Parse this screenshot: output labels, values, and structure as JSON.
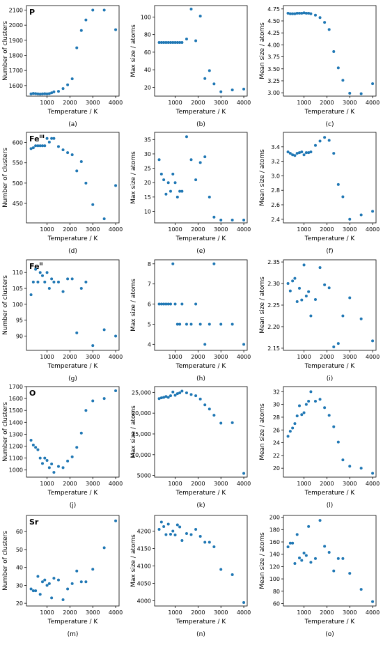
{
  "figure": {
    "subplot_letters": [
      "(a)",
      "(b)",
      "(c)",
      "(d)",
      "(e)",
      "(f)",
      "(g)",
      "(h)",
      "(i)",
      "(j)",
      "(k)",
      "(l)",
      "(m)",
      "(n)",
      "(o)"
    ],
    "row_labels": [
      "P",
      "Fe",
      "Fe",
      "O",
      "Sr"
    ],
    "row_label_superscripts": [
      "",
      "III",
      "II",
      "",
      ""
    ],
    "marker_color": "#1f77b4"
  },
  "chart_data": [
    {
      "type": "scatter",
      "letter": "(a)",
      "row_label": "P",
      "xlabel": "Temperature / K",
      "ylabel": "Number of clusters",
      "xlim": [
        100,
        4150
      ],
      "ylim": [
        1530,
        2130
      ],
      "xticks": [
        1000,
        2000,
        3000,
        4000
      ],
      "xtick_labels": [
        "1000",
        "2000",
        "3000",
        "4000"
      ],
      "yticks": [
        1600,
        1700,
        1800,
        1900,
        2000,
        2100
      ],
      "ytick_labels": [
        "1600",
        "1700",
        "1800",
        "1900",
        "2000",
        "2100"
      ],
      "x": [
        300,
        400,
        500,
        600,
        700,
        800,
        900,
        1000,
        1100,
        1200,
        1300,
        1500,
        1700,
        1900,
        2100,
        2300,
        2500,
        2700,
        3000,
        3500,
        4000
      ],
      "y": [
        1545,
        1548,
        1547,
        1545,
        1544,
        1545,
        1546,
        1545,
        1547,
        1552,
        1558,
        1562,
        1580,
        1605,
        1645,
        1850,
        1965,
        2035,
        2100,
        2100,
        1970
      ]
    },
    {
      "type": "scatter",
      "letter": "(b)",
      "xlabel": "Temperature / K",
      "ylabel": "Max size / atoms",
      "xlim": [
        100,
        4150
      ],
      "ylim": [
        10,
        113
      ],
      "xticks": [
        1000,
        2000,
        3000,
        4000
      ],
      "xtick_labels": [
        "1000",
        "2000",
        "3000",
        "4000"
      ],
      "yticks": [
        20,
        40,
        60,
        80,
        100
      ],
      "ytick_labels": [
        "20",
        "40",
        "60",
        "80",
        "100"
      ],
      "x": [
        300,
        400,
        500,
        600,
        700,
        800,
        900,
        1000,
        1100,
        1200,
        1300,
        1500,
        1700,
        1900,
        2100,
        2300,
        2500,
        2700,
        3000,
        3500,
        4000
      ],
      "y": [
        71,
        71,
        71,
        71,
        71,
        71,
        71,
        71,
        71,
        71,
        71,
        75,
        109,
        73,
        101,
        30,
        39,
        24,
        15,
        17,
        18
      ]
    },
    {
      "type": "scatter",
      "letter": "(c)",
      "xlabel": "Temperature / K",
      "ylabel": "Mean size / atoms",
      "xlim": [
        100,
        4150
      ],
      "ylim": [
        2.93,
        4.82
      ],
      "xticks": [
        1000,
        2000,
        3000,
        4000
      ],
      "xtick_labels": [
        "1000",
        "2000",
        "3000",
        "4000"
      ],
      "yticks": [
        3.0,
        3.25,
        3.5,
        3.75,
        4.0,
        4.25,
        4.5,
        4.75
      ],
      "ytick_labels": [
        "3.00",
        "3.25",
        "3.50",
        "3.75",
        "4.00",
        "4.25",
        "4.50",
        "4.75"
      ],
      "x": [
        300,
        400,
        500,
        600,
        700,
        800,
        900,
        1000,
        1100,
        1200,
        1300,
        1500,
        1700,
        1900,
        2100,
        2300,
        2500,
        2700,
        3000,
        3500,
        4000
      ],
      "y": [
        4.66,
        4.65,
        4.65,
        4.65,
        4.66,
        4.66,
        4.66,
        4.67,
        4.66,
        4.66,
        4.65,
        4.62,
        4.57,
        4.47,
        4.32,
        3.86,
        3.52,
        3.26,
        2.99,
        2.98,
        3.19
      ]
    },
    {
      "type": "scatter",
      "letter": "(d)",
      "row_label": "Fe",
      "row_label_sup": "III",
      "xlabel": "Temperature / K",
      "ylabel": "Number of clusters",
      "xlim": [
        100,
        4150
      ],
      "ylim": [
        402,
        625
      ],
      "xticks": [
        1000,
        2000,
        3000,
        4000
      ],
      "xtick_labels": [
        "1000",
        "2000",
        "3000",
        "4000"
      ],
      "yticks": [
        450,
        500,
        550,
        600
      ],
      "ytick_labels": [
        "450",
        "500",
        "550",
        "600"
      ],
      "x": [
        300,
        400,
        500,
        600,
        700,
        800,
        900,
        1000,
        1100,
        1200,
        1300,
        1500,
        1700,
        1900,
        2100,
        2300,
        2500,
        2700,
        3000,
        3500,
        4000
      ],
      "y": [
        585,
        587,
        592,
        592,
        592,
        592,
        592,
        610,
        601,
        610,
        610,
        590,
        582,
        575,
        570,
        530,
        553,
        500,
        447,
        412,
        494
      ]
    },
    {
      "type": "scatter",
      "letter": "(e)",
      "xlabel": "Temperature / K",
      "ylabel": "Max size / atoms",
      "xlim": [
        100,
        4150
      ],
      "ylim": [
        6,
        37.5
      ],
      "xticks": [
        1000,
        2000,
        3000,
        4000
      ],
      "xtick_labels": [
        "1000",
        "2000",
        "3000",
        "4000"
      ],
      "yticks": [
        10,
        15,
        20,
        25,
        30,
        35
      ],
      "ytick_labels": [
        "10",
        "15",
        "20",
        "25",
        "30",
        "35"
      ],
      "x": [
        300,
        400,
        500,
        600,
        700,
        800,
        900,
        1000,
        1100,
        1200,
        1300,
        1500,
        1700,
        1900,
        2100,
        2300,
        2500,
        2700,
        3000,
        3500,
        4000
      ],
      "y": [
        28,
        23,
        21,
        16,
        20,
        17,
        23,
        20,
        15,
        17,
        17,
        36,
        28,
        21,
        27,
        29,
        15,
        8,
        7,
        7,
        7
      ]
    },
    {
      "type": "scatter",
      "letter": "(f)",
      "xlabel": "Temperature / K",
      "ylabel": "Mean size / atoms",
      "xlim": [
        100,
        4150
      ],
      "ylim": [
        2.35,
        3.6
      ],
      "xticks": [
        1000,
        2000,
        3000,
        4000
      ],
      "xtick_labels": [
        "1000",
        "2000",
        "3000",
        "4000"
      ],
      "yticks": [
        2.4,
        2.6,
        2.8,
        3.0,
        3.2,
        3.4
      ],
      "ytick_labels": [
        "2.4",
        "2.6",
        "2.8",
        "3.0",
        "3.2",
        "3.4"
      ],
      "x": [
        300,
        400,
        500,
        600,
        700,
        800,
        900,
        1000,
        1100,
        1200,
        1300,
        1500,
        1700,
        1900,
        2100,
        2300,
        2500,
        2700,
        3000,
        3500,
        4000
      ],
      "y": [
        3.33,
        3.31,
        3.29,
        3.28,
        3.31,
        3.32,
        3.33,
        3.29,
        3.32,
        3.32,
        3.33,
        3.42,
        3.48,
        3.53,
        3.49,
        3.31,
        2.88,
        2.71,
        2.4,
        2.46,
        2.51
      ]
    },
    {
      "type": "scatter",
      "letter": "(g)",
      "row_label": "Fe",
      "row_label_sup": "II",
      "xlabel": "Temperature / K",
      "ylabel": "Number of clusters",
      "xlim": [
        100,
        4150
      ],
      "ylim": [
        85.5,
        114
      ],
      "xticks": [
        1000,
        2000,
        3000,
        4000
      ],
      "xtick_labels": [
        "1000",
        "2000",
        "3000",
        "4000"
      ],
      "yticks": [
        90,
        95,
        100,
        105,
        110
      ],
      "ytick_labels": [
        "90",
        "95",
        "100",
        "105",
        "110"
      ],
      "x": [
        300,
        400,
        500,
        600,
        700,
        800,
        900,
        1000,
        1100,
        1200,
        1300,
        1500,
        1700,
        1900,
        2100,
        2300,
        2500,
        2700,
        3000,
        3500,
        4000
      ],
      "y": [
        103,
        107,
        111,
        107,
        110,
        109,
        107,
        110,
        105,
        108,
        107,
        107,
        104,
        108,
        108,
        91,
        105,
        107,
        87,
        92,
        90
      ]
    },
    {
      "type": "scatter",
      "letter": "(h)",
      "xlabel": "Temperature / K",
      "ylabel": "Max size / atoms",
      "xlim": [
        100,
        4150
      ],
      "ylim": [
        3.7,
        8.2
      ],
      "xticks": [
        1000,
        2000,
        3000,
        4000
      ],
      "xtick_labels": [
        "1000",
        "2000",
        "3000",
        "4000"
      ],
      "yticks": [
        4,
        5,
        6,
        7,
        8
      ],
      "ytick_labels": [
        "4",
        "5",
        "6",
        "7",
        "8"
      ],
      "x": [
        300,
        400,
        500,
        600,
        700,
        800,
        900,
        1000,
        1100,
        1200,
        1300,
        1500,
        1700,
        1900,
        2100,
        2300,
        2500,
        2700,
        3000,
        3500,
        4000
      ],
      "y": [
        6,
        6,
        6,
        6,
        6,
        6,
        8,
        6,
        5,
        5,
        6,
        5,
        5,
        6,
        5,
        4,
        5,
        8,
        5,
        5,
        4
      ]
    },
    {
      "type": "scatter",
      "letter": "(i)",
      "xlabel": "Temperature / K",
      "ylabel": "Mean size / atoms",
      "xlim": [
        100,
        4150
      ],
      "ylim": [
        2.145,
        2.355
      ],
      "xticks": [
        1000,
        2000,
        3000,
        4000
      ],
      "xtick_labels": [
        "1000",
        "2000",
        "3000",
        "4000"
      ],
      "yticks": [
        2.15,
        2.2,
        2.25,
        2.3,
        2.35
      ],
      "ytick_labels": [
        "2.15",
        "2.20",
        "2.25",
        "2.30",
        "2.35"
      ],
      "x": [
        300,
        400,
        500,
        600,
        700,
        800,
        900,
        1000,
        1100,
        1200,
        1300,
        1500,
        1700,
        1900,
        2100,
        2300,
        2500,
        2700,
        3000,
        3500,
        4000
      ],
      "y": [
        2.3,
        2.283,
        2.306,
        2.312,
        2.258,
        2.289,
        2.262,
        2.343,
        2.271,
        2.281,
        2.225,
        2.263,
        2.337,
        2.297,
        2.29,
        2.153,
        2.161,
        2.225,
        2.267,
        2.218,
        2.167
      ]
    },
    {
      "type": "scatter",
      "letter": "(j)",
      "row_label": "O",
      "xlabel": "Temperature / K",
      "ylabel": "Number of clusters",
      "xlim": [
        100,
        4150
      ],
      "ylim": [
        940,
        1700
      ],
      "xticks": [
        1000,
        2000,
        3000,
        4000
      ],
      "xtick_labels": [
        "1000",
        "2000",
        "3000",
        "4000"
      ],
      "yticks": [
        1000,
        1100,
        1200,
        1300,
        1400,
        1500,
        1600,
        1700
      ],
      "ytick_labels": [
        "1000",
        "1100",
        "1200",
        "1300",
        "1400",
        "1500",
        "1600",
        "1700"
      ],
      "x": [
        300,
        400,
        500,
        600,
        700,
        800,
        900,
        1000,
        1100,
        1200,
        1300,
        1500,
        1700,
        1900,
        2100,
        2300,
        2500,
        2700,
        3000,
        3500,
        4000
      ],
      "y": [
        1250,
        1210,
        1190,
        1170,
        1100,
        1055,
        1100,
        1080,
        1020,
        1050,
        980,
        1030,
        1020,
        1075,
        1110,
        1190,
        1310,
        1500,
        1580,
        1600,
        1665
      ]
    },
    {
      "type": "scatter",
      "letter": "(k)",
      "xlabel": "Temperature / K",
      "ylabel": "Max size / atoms",
      "xlim": [
        100,
        4150
      ],
      "ylim": [
        4600,
        26400
      ],
      "xticks": [
        1000,
        2000,
        3000,
        4000
      ],
      "xtick_labels": [
        "1000",
        "2000",
        "3000",
        "4000"
      ],
      "yticks": [
        5000,
        10000,
        15000,
        20000,
        25000
      ],
      "ytick_labels": [
        "5000",
        "10,000",
        "15,000",
        "20,000",
        "25,000"
      ],
      "x": [
        300,
        400,
        500,
        600,
        700,
        800,
        900,
        1000,
        1100,
        1200,
        1300,
        1500,
        1700,
        1900,
        2100,
        2300,
        2500,
        2700,
        3000,
        3500,
        4000
      ],
      "y": [
        23500,
        23700,
        23800,
        24000,
        23800,
        24200,
        25100,
        24300,
        24700,
        24900,
        25300,
        24900,
        24500,
        24200,
        23400,
        22000,
        21000,
        19500,
        17600,
        17700,
        5500
      ]
    },
    {
      "type": "scatter",
      "letter": "(l)",
      "xlabel": "Temperature / K",
      "ylabel": "Mean size / atoms",
      "xlim": [
        100,
        4150
      ],
      "ylim": [
        18.6,
        32.8
      ],
      "xticks": [
        1000,
        2000,
        3000,
        4000
      ],
      "xtick_labels": [
        "1000",
        "2000",
        "3000",
        "4000"
      ],
      "yticks": [
        20,
        22,
        24,
        26,
        28,
        30,
        32
      ],
      "ytick_labels": [
        "20",
        "22",
        "24",
        "26",
        "28",
        "30",
        "32"
      ],
      "x": [
        300,
        400,
        500,
        600,
        700,
        800,
        900,
        1000,
        1100,
        1200,
        1300,
        1500,
        1700,
        1900,
        2100,
        2300,
        2500,
        2700,
        3000,
        3500,
        4000
      ],
      "y": [
        25.0,
        25.8,
        26.3,
        27.0,
        28.2,
        29.8,
        28.4,
        28.7,
        30.0,
        30.5,
        32.0,
        30.5,
        30.8,
        29.5,
        28.3,
        26.5,
        24.1,
        21.3,
        20.3,
        20.0,
        19.2
      ]
    },
    {
      "type": "scatter",
      "letter": "(m)",
      "row_label": "Sr",
      "xlabel": "Temperature / K",
      "ylabel": "Number of clusters",
      "xlim": [
        100,
        4150
      ],
      "ylim": [
        18.5,
        69
      ],
      "xticks": [
        1000,
        2000,
        3000,
        4000
      ],
      "xtick_labels": [
        "1000",
        "2000",
        "3000",
        "4000"
      ],
      "yticks": [
        20,
        30,
        40,
        50,
        60
      ],
      "ytick_labels": [
        "20",
        "30",
        "40",
        "50",
        "60"
      ],
      "x": [
        300,
        400,
        500,
        600,
        700,
        800,
        900,
        1000,
        1100,
        1200,
        1300,
        1500,
        1700,
        1900,
        2100,
        2300,
        2500,
        2700,
        3000,
        3500,
        4000
      ],
      "y": [
        28,
        27,
        27,
        35,
        25,
        32,
        33,
        30,
        31,
        23,
        34,
        33,
        22,
        28,
        31,
        38,
        32,
        32,
        39,
        51,
        66
      ]
    },
    {
      "type": "scatter",
      "letter": "(n)",
      "xlabel": "Temperature / K",
      "ylabel": "Max size / atoms",
      "xlim": [
        100,
        4150
      ],
      "ylim": [
        3985,
        4245
      ],
      "xticks": [
        1000,
        2000,
        3000,
        4000
      ],
      "xtick_labels": [
        "1000",
        "2000",
        "3000",
        "4000"
      ],
      "yticks": [
        4000,
        4050,
        4100,
        4150,
        4200
      ],
      "ytick_labels": [
        "4000",
        "4050",
        "4100",
        "4150",
        "4200"
      ],
      "x": [
        300,
        400,
        500,
        600,
        700,
        800,
        900,
        1000,
        1100,
        1200,
        1300,
        1500,
        1700,
        1900,
        2100,
        2300,
        2500,
        2700,
        3000,
        3500,
        4000
      ],
      "y": [
        4205,
        4226,
        4213,
        4190,
        4220,
        4191,
        4200,
        4189,
        4218,
        4212,
        4173,
        4193,
        4190,
        4205,
        4185,
        4168,
        4168,
        4155,
        4090,
        4075,
        3995
      ]
    },
    {
      "type": "scatter",
      "letter": "(o)",
      "xlabel": "Temperature / K",
      "ylabel": "Mean size / atoms",
      "xlim": [
        100,
        4150
      ],
      "ylim": [
        56,
        203
      ],
      "xticks": [
        1000,
        2000,
        3000,
        4000
      ],
      "xtick_labels": [
        "1000",
        "2000",
        "3000",
        "4000"
      ],
      "yticks": [
        60,
        80,
        100,
        120,
        140,
        160,
        180,
        200
      ],
      "ytick_labels": [
        "60",
        "80",
        "100",
        "120",
        "140",
        "160",
        "180",
        "200"
      ],
      "x": [
        300,
        400,
        500,
        600,
        700,
        800,
        900,
        1000,
        1100,
        1200,
        1300,
        1500,
        1700,
        1900,
        2100,
        2300,
        2500,
        2700,
        3000,
        3500,
        4000
      ],
      "y": [
        152,
        158,
        158,
        125,
        172,
        134,
        130,
        142,
        138,
        185,
        127,
        133,
        195,
        153,
        143,
        113,
        133,
        133,
        109,
        83,
        63
      ]
    }
  ]
}
